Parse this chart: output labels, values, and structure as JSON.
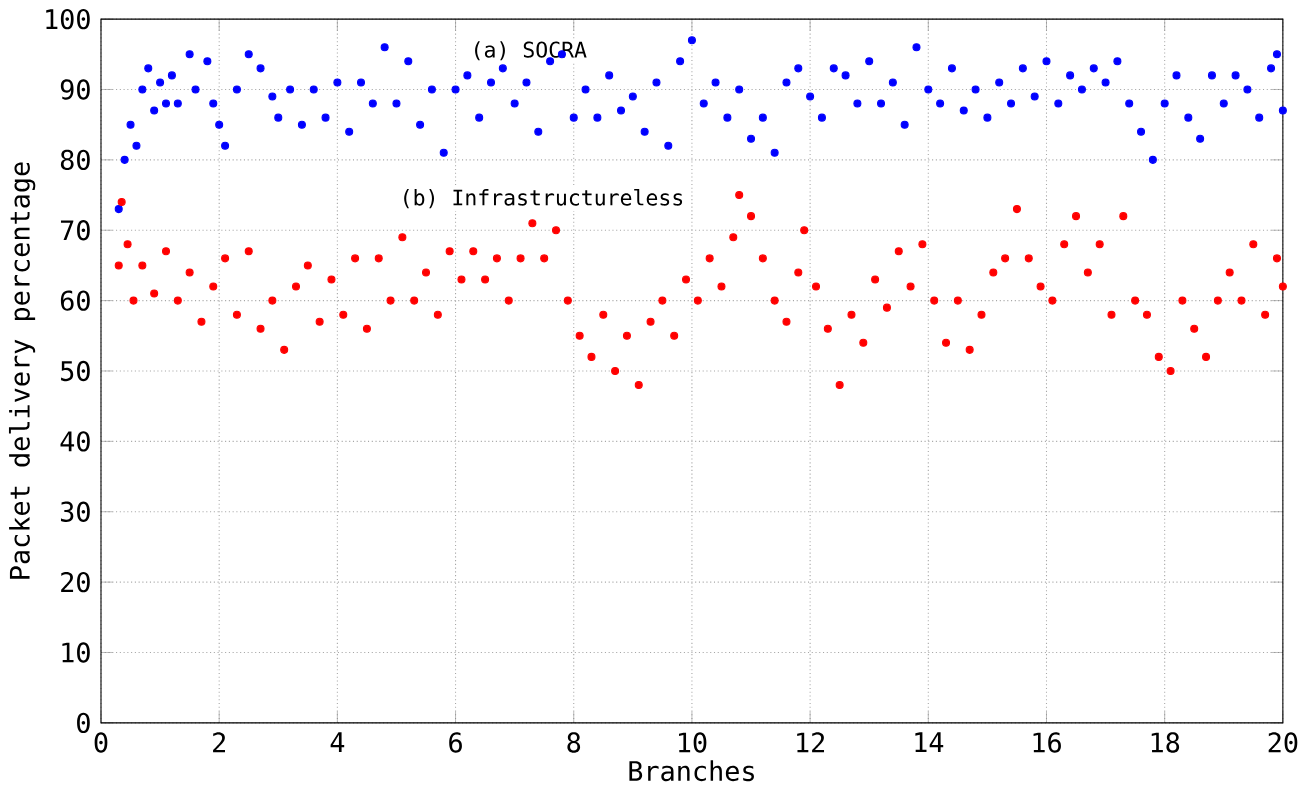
{
  "chart_data": {
    "type": "scatter",
    "xlabel": "Branches",
    "ylabel": "Packet delivery percentage",
    "xlim": [
      0,
      20
    ],
    "ylim": [
      0,
      100
    ],
    "xticks": [
      0,
      2,
      4,
      6,
      8,
      10,
      12,
      14,
      16,
      18,
      20
    ],
    "yticks": [
      0,
      10,
      20,
      30,
      40,
      50,
      60,
      70,
      80,
      90,
      100
    ],
    "grid": true,
    "series": [
      {
        "name": "(a) SOCRA",
        "color": "#0000ff",
        "x": [
          0.3,
          0.4,
          0.5,
          0.6,
          0.7,
          0.8,
          0.9,
          1.0,
          1.1,
          1.2,
          1.3,
          1.5,
          1.6,
          1.8,
          1.9,
          2.0,
          2.1,
          2.3,
          2.5,
          2.7,
          2.9,
          3.0,
          3.2,
          3.4,
          3.6,
          3.8,
          4.0,
          4.2,
          4.4,
          4.6,
          4.8,
          5.0,
          5.2,
          5.4,
          5.6,
          5.8,
          6.0,
          6.2,
          6.4,
          6.6,
          6.8,
          7.0,
          7.2,
          7.4,
          7.6,
          7.8,
          8.0,
          8.2,
          8.4,
          8.6,
          8.8,
          9.0,
          9.2,
          9.4,
          9.6,
          9.8,
          10.0,
          10.2,
          10.4,
          10.6,
          10.8,
          11.0,
          11.2,
          11.4,
          11.6,
          11.8,
          12.0,
          12.2,
          12.4,
          12.6,
          12.8,
          13.0,
          13.2,
          13.4,
          13.6,
          13.8,
          14.0,
          14.2,
          14.4,
          14.6,
          14.8,
          15.0,
          15.2,
          15.4,
          15.6,
          15.8,
          16.0,
          16.2,
          16.4,
          16.6,
          16.8,
          17.0,
          17.2,
          17.4,
          17.6,
          17.8,
          18.0,
          18.2,
          18.4,
          18.6,
          18.8,
          19.0,
          19.2,
          19.4,
          19.6,
          19.8,
          19.9,
          20.0
        ],
        "values": [
          73,
          80,
          85,
          82,
          90,
          93,
          87,
          91,
          88,
          92,
          88,
          95,
          90,
          94,
          88,
          85,
          82,
          90,
          95,
          93,
          89,
          86,
          90,
          85,
          90,
          86,
          91,
          84,
          91,
          88,
          96,
          88,
          94,
          85,
          90,
          81,
          90,
          92,
          86,
          91,
          93,
          88,
          91,
          84,
          94,
          95,
          86,
          90,
          86,
          92,
          87,
          89,
          84,
          91,
          82,
          94,
          97,
          88,
          91,
          86,
          90,
          83,
          86,
          81,
          91,
          93,
          89,
          86,
          93,
          92,
          88,
          94,
          88,
          91,
          85,
          96,
          90,
          88,
          93,
          87,
          90,
          86,
          91,
          88,
          93,
          89,
          94,
          88,
          92,
          90,
          93,
          91,
          94,
          88,
          84,
          80,
          88,
          92,
          86,
          83,
          92,
          88,
          92,
          90,
          86,
          93,
          95,
          87
        ]
      },
      {
        "name": "(b) Infrastructureless",
        "color": "#ff0000",
        "x": [
          0.3,
          0.35,
          0.45,
          0.55,
          0.7,
          0.9,
          1.1,
          1.3,
          1.5,
          1.7,
          1.9,
          2.1,
          2.3,
          2.5,
          2.7,
          2.9,
          3.1,
          3.3,
          3.5,
          3.7,
          3.9,
          4.1,
          4.3,
          4.5,
          4.7,
          4.9,
          5.1,
          5.3,
          5.5,
          5.7,
          5.9,
          6.1,
          6.3,
          6.5,
          6.7,
          6.9,
          7.1,
          7.3,
          7.5,
          7.7,
          7.9,
          8.1,
          8.3,
          8.5,
          8.7,
          8.9,
          9.1,
          9.3,
          9.5,
          9.7,
          9.9,
          10.1,
          10.3,
          10.5,
          10.7,
          10.8,
          11.0,
          11.2,
          11.4,
          11.6,
          11.8,
          11.9,
          12.1,
          12.3,
          12.5,
          12.7,
          12.9,
          13.1,
          13.3,
          13.5,
          13.7,
          13.9,
          14.1,
          14.3,
          14.5,
          14.7,
          14.9,
          15.1,
          15.3,
          15.5,
          15.7,
          15.9,
          16.1,
          16.3,
          16.5,
          16.7,
          16.9,
          17.1,
          17.3,
          17.5,
          17.7,
          17.9,
          18.1,
          18.3,
          18.5,
          18.7,
          18.9,
          19.1,
          19.3,
          19.5,
          19.7,
          19.9,
          20.0
        ],
        "values": [
          65,
          74,
          68,
          60,
          65,
          61,
          67,
          60,
          64,
          57,
          62,
          66,
          58,
          67,
          56,
          60,
          53,
          62,
          65,
          57,
          63,
          58,
          66,
          56,
          66,
          60,
          69,
          60,
          64,
          58,
          67,
          63,
          67,
          63,
          66,
          60,
          66,
          71,
          66,
          70,
          60,
          55,
          52,
          58,
          50,
          55,
          48,
          57,
          60,
          55,
          63,
          60,
          66,
          62,
          69,
          75,
          72,
          66,
          60,
          57,
          64,
          70,
          62,
          56,
          48,
          58,
          54,
          63,
          59,
          67,
          62,
          68,
          60,
          54,
          60,
          53,
          58,
          64,
          66,
          73,
          66,
          62,
          60,
          68,
          72,
          64,
          68,
          58,
          72,
          60,
          58,
          52,
          50,
          60,
          56,
          52,
          60,
          64,
          60,
          68,
          58,
          66,
          62
        ]
      }
    ]
  }
}
